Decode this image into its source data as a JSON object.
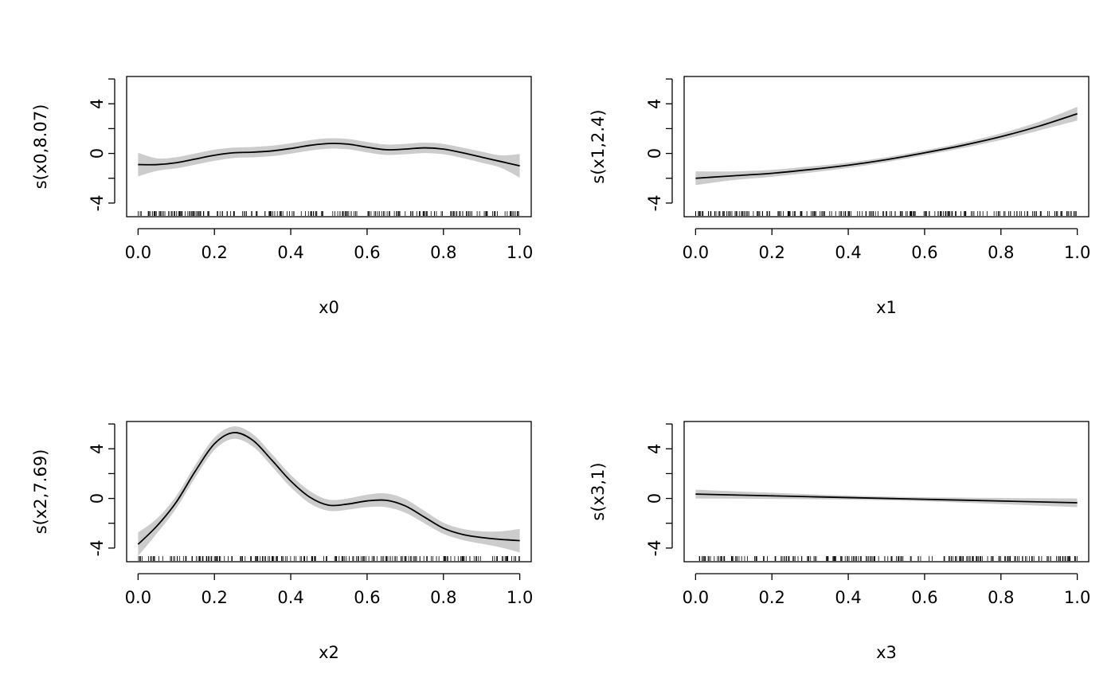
{
  "chart_data": [
    {
      "type": "line",
      "xlabel": "x0",
      "ylabel": "s(x0,8.07)",
      "xlim": [
        -0.03,
        1.03
      ],
      "ylim": [
        -5.1,
        6.2
      ],
      "x_ticks": [
        "0.0",
        "0.2",
        "0.4",
        "0.6",
        "0.8",
        "1.0"
      ],
      "y_ticks": [
        "-4",
        "0",
        "4"
      ],
      "y_minor_ticks": [
        -4,
        -2,
        0,
        2,
        4,
        6
      ],
      "series": [
        {
          "x": [
            0.0,
            0.05,
            0.1,
            0.15,
            0.2,
            0.25,
            0.3,
            0.35,
            0.4,
            0.45,
            0.5,
            0.55,
            0.6,
            0.65,
            0.7,
            0.75,
            0.8,
            0.85,
            0.9,
            0.95,
            1.0
          ],
          "y": [
            -0.9,
            -0.9,
            -0.75,
            -0.45,
            -0.15,
            0.05,
            0.1,
            0.2,
            0.4,
            0.65,
            0.8,
            0.75,
            0.5,
            0.3,
            0.35,
            0.45,
            0.35,
            0.05,
            -0.3,
            -0.65,
            -1.0
          ],
          "ci_halfwidth": [
            0.95,
            0.5,
            0.45,
            0.45,
            0.45,
            0.42,
            0.42,
            0.42,
            0.42,
            0.42,
            0.42,
            0.42,
            0.42,
            0.42,
            0.42,
            0.42,
            0.42,
            0.42,
            0.45,
            0.5,
            0.95
          ]
        }
      ]
    },
    {
      "type": "line",
      "xlabel": "x1",
      "ylabel": "s(x1,2.4)",
      "xlim": [
        -0.03,
        1.03
      ],
      "ylim": [
        -5.1,
        6.2
      ],
      "x_ticks": [
        "0.0",
        "0.2",
        "0.4",
        "0.6",
        "0.8",
        "1.0"
      ],
      "y_ticks": [
        "-4",
        "0",
        "4"
      ],
      "y_minor_ticks": [
        -4,
        -2,
        0,
        2,
        4,
        6
      ],
      "series": [
        {
          "x": [
            0.0,
            0.1,
            0.2,
            0.3,
            0.4,
            0.5,
            0.6,
            0.7,
            0.8,
            0.9,
            1.0
          ],
          "y": [
            -2.0,
            -1.8,
            -1.6,
            -1.3,
            -0.95,
            -0.5,
            0.05,
            0.65,
            1.35,
            2.2,
            3.2
          ],
          "ci_halfwidth": [
            0.55,
            0.35,
            0.28,
            0.25,
            0.22,
            0.2,
            0.2,
            0.22,
            0.27,
            0.35,
            0.55
          ]
        }
      ]
    },
    {
      "type": "line",
      "xlabel": "x2",
      "ylabel": "s(x2,7.69)",
      "xlim": [
        -0.03,
        1.03
      ],
      "ylim": [
        -5.1,
        6.2
      ],
      "x_ticks": [
        "0.0",
        "0.2",
        "0.4",
        "0.6",
        "0.8",
        "1.0"
      ],
      "y_ticks": [
        "-4",
        "0",
        "4"
      ],
      "y_minor_ticks": [
        -4,
        -2,
        0,
        2,
        4,
        6
      ],
      "series": [
        {
          "x": [
            0.0,
            0.05,
            0.1,
            0.15,
            0.2,
            0.25,
            0.3,
            0.35,
            0.4,
            0.45,
            0.5,
            0.55,
            0.6,
            0.65,
            0.7,
            0.75,
            0.8,
            0.85,
            0.9,
            0.95,
            1.0
          ],
          "y": [
            -3.7,
            -2.2,
            -0.3,
            2.2,
            4.4,
            5.3,
            4.7,
            3.1,
            1.4,
            0.1,
            -0.55,
            -0.45,
            -0.2,
            -0.15,
            -0.6,
            -1.5,
            -2.4,
            -2.9,
            -3.15,
            -3.3,
            -3.4
          ],
          "ci_halfwidth": [
            0.95,
            0.6,
            0.5,
            0.5,
            0.5,
            0.5,
            0.5,
            0.5,
            0.5,
            0.5,
            0.45,
            0.45,
            0.5,
            0.55,
            0.55,
            0.5,
            0.45,
            0.45,
            0.5,
            0.65,
            0.95
          ]
        }
      ]
    },
    {
      "type": "line",
      "xlabel": "x3",
      "ylabel": "s(x3,1)",
      "xlim": [
        -0.03,
        1.03
      ],
      "ylim": [
        -5.1,
        6.2
      ],
      "x_ticks": [
        "0.0",
        "0.2",
        "0.4",
        "0.6",
        "0.8",
        "1.0"
      ],
      "y_ticks": [
        "-4",
        "0",
        "4"
      ],
      "y_minor_ticks": [
        -4,
        -2,
        0,
        2,
        4,
        6
      ],
      "series": [
        {
          "x": [
            0.0,
            0.5,
            1.0
          ],
          "y": [
            0.35,
            0.0,
            -0.35
          ],
          "ci_halfwidth": [
            0.35,
            0.15,
            0.35
          ]
        }
      ]
    }
  ],
  "colors": {
    "fit_line": "#000000",
    "ci_band": "#cccccc",
    "frame": "#000000"
  }
}
